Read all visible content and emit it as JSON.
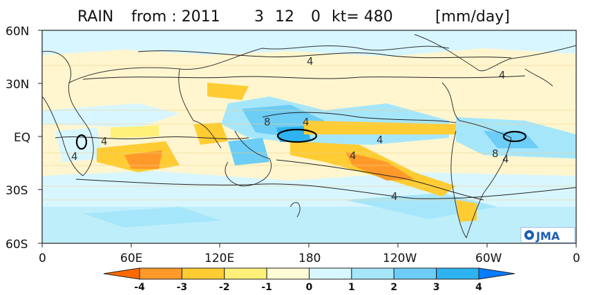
{
  "title": {
    "variable": "RAIN",
    "from_label": "from : 2011",
    "month": "3",
    "day": "12",
    "hour": "0",
    "kt_label": "kt= 480",
    "units": "[mm/day]"
  },
  "map": {
    "lat_ticks": [
      "60N",
      "30N",
      "EQ",
      "30S",
      "60S"
    ],
    "lon_ticks": [
      "0",
      "60E",
      "120E",
      "180",
      "120W",
      "60W",
      "0"
    ],
    "contour_labels": [
      "4",
      "4",
      "8",
      "4",
      "4",
      "4",
      "4",
      "4",
      "8",
      "4",
      "4"
    ],
    "logo": "JMA"
  },
  "colorbar": {
    "levels": [
      "-4",
      "-3",
      "-2",
      "-1",
      "0",
      "1",
      "2",
      "3",
      "4"
    ],
    "colors": [
      "#ff6a00",
      "#ff9a2a",
      "#ffcc33",
      "#fff07a",
      "#fffbd6",
      "#d8f6ff",
      "#a6e6fb",
      "#6ccdf6",
      "#2eb3f0",
      "#0a7cff"
    ]
  }
}
